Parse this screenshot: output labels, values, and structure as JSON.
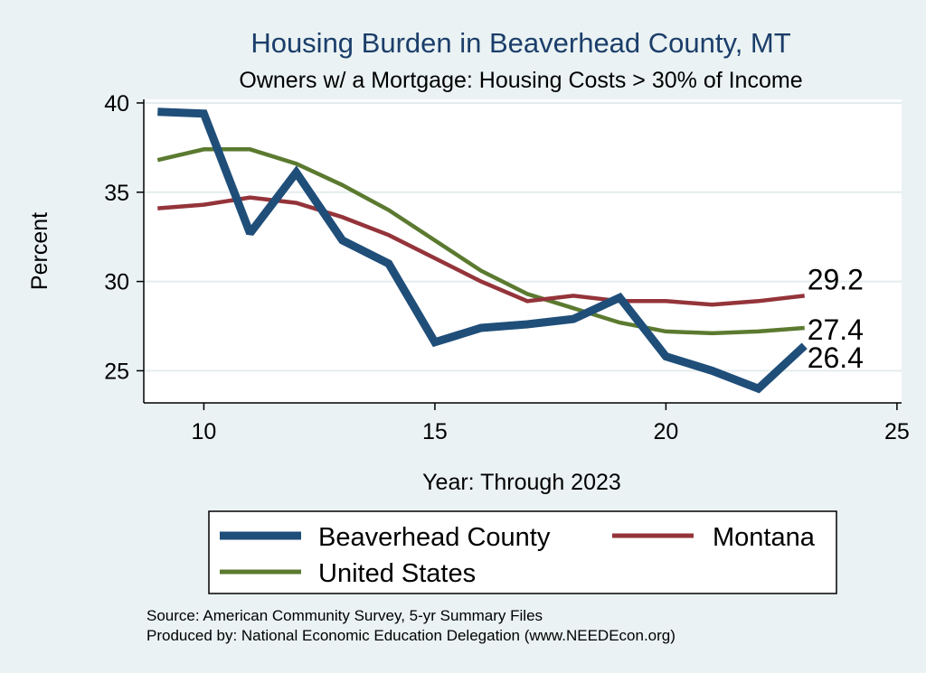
{
  "chart_data": {
    "type": "line",
    "title": "Housing Burden in Beaverhead County, MT",
    "subtitle": "Owners w/ a Mortgage: Housing Costs > 30% of Income",
    "xlabel": "Year: Through 2023",
    "ylabel": "Percent",
    "xlim": [
      8.7,
      25.1
    ],
    "ylim": [
      23.2,
      40.2
    ],
    "xticks": [
      10,
      15,
      20,
      25
    ],
    "yticks": [
      25,
      30,
      35,
      40
    ],
    "grid": true,
    "legend_position": "bottom",
    "x": [
      9,
      10,
      11,
      12,
      13,
      14,
      15,
      16,
      17,
      18,
      19,
      20,
      21,
      22,
      23
    ],
    "series": [
      {
        "name": "Beaverhead County",
        "color": "#1f4e79",
        "values": [
          39.5,
          39.4,
          32.7,
          36.1,
          32.3,
          31.0,
          26.6,
          27.4,
          27.6,
          27.9,
          29.1,
          25.8,
          25.0,
          24.0,
          26.4
        ],
        "end_label": "26.4"
      },
      {
        "name": "Montana",
        "color": "#94343a",
        "values": [
          34.1,
          34.3,
          34.7,
          34.4,
          33.6,
          32.6,
          31.3,
          30.0,
          28.9,
          29.2,
          28.9,
          28.9,
          28.7,
          28.9,
          29.2
        ],
        "end_label": "29.2"
      },
      {
        "name": "United States",
        "color": "#5b7a30",
        "values": [
          36.8,
          37.4,
          37.4,
          36.6,
          35.4,
          34.0,
          32.3,
          30.6,
          29.3,
          28.5,
          27.7,
          27.2,
          27.1,
          27.2,
          27.4
        ],
        "end_label": "27.4"
      }
    ]
  },
  "source_line": "Source: American Community Survey, 5-yr Summary Files",
  "produced_line": "Produced by: National Economic Education Delegation (www.NEEDEcon.org)"
}
